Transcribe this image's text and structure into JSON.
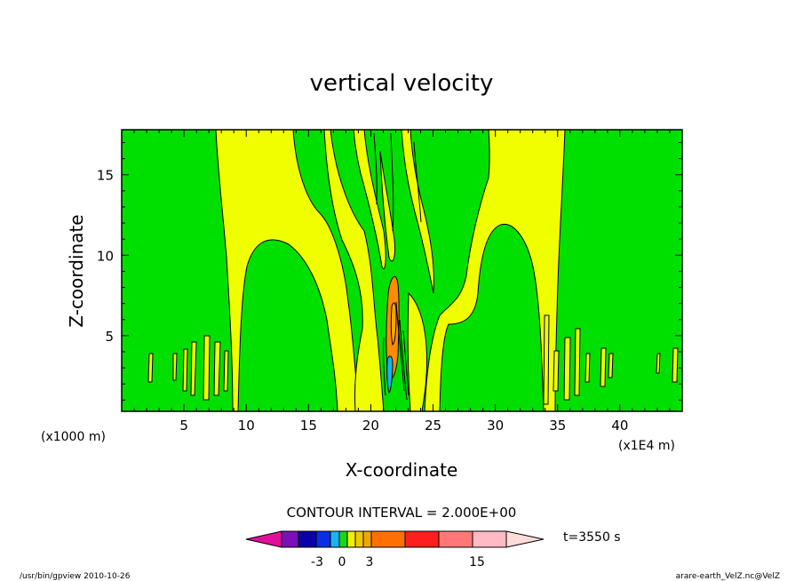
{
  "chart_data": {
    "type": "contour",
    "title": "vertical velocity",
    "xlabel": "X-coordinate",
    "ylabel": "Z-coordinate",
    "x_units": "(x1000 m)",
    "y_units": "(x1E4 m)",
    "xlim": [
      0,
      45
    ],
    "ylim": [
      0.3,
      17.8
    ],
    "x_ticks": [
      "5",
      "10",
      "15",
      "20",
      "25",
      "30",
      "35",
      "40"
    ],
    "y_ticks": [
      "5",
      "10",
      "15"
    ],
    "contour_interval_label": "CONTOUR INTERVAL = 2.000E+00",
    "time_label": "t=3550 s",
    "colorbar_ticks": [
      "-3",
      "0",
      "3",
      "15"
    ],
    "colorbar_colors": [
      "#e0109a",
      "#7b10b8",
      "#0a00a8",
      "#0a2ee8",
      "#1ab4f0",
      "#18d818",
      "#f0f000",
      "#f0c800",
      "#f0a800",
      "#ff7000",
      "#ff1e1e",
      "#ff7878",
      "#ffbac4",
      "#ffdcd8"
    ],
    "field_colors": {
      "background_positive_small": "#00e000",
      "negative_small": "#f0ff00",
      "updraft_core": "#ff8c00",
      "downdraft_core": "#1ab4f0"
    },
    "footer_left": "/usr/bin/gpview   2010-10-26",
    "footer_right": "arare-earth_VelZ.nc@VelZ"
  }
}
